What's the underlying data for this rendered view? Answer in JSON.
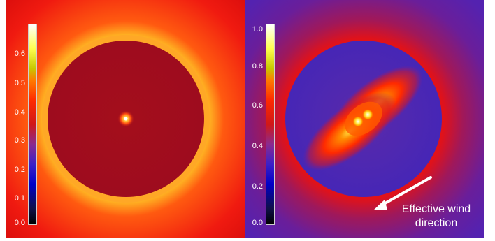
{
  "left_panel": {
    "colorbar_ticks": [
      "0.6",
      "0.5",
      "0.4",
      "0.3",
      "0.2",
      "0.1",
      "0.0"
    ],
    "colors": {
      "outer": "#e81010",
      "ring": "#ffaa22",
      "disk": "#a40c1c",
      "center": "#ffffff"
    }
  },
  "right_panel": {
    "colorbar_ticks": [
      "1.0",
      "0.8",
      "0.6",
      "0.4",
      "0.2",
      "0.0"
    ],
    "annotation": {
      "line1": "Effective wind",
      "line2": "direction"
    },
    "colors": {
      "outer": "#5a24b4",
      "disk": "#4a2ab4",
      "lobe": "#ff3a00",
      "arrow": "#ffffff"
    }
  }
}
